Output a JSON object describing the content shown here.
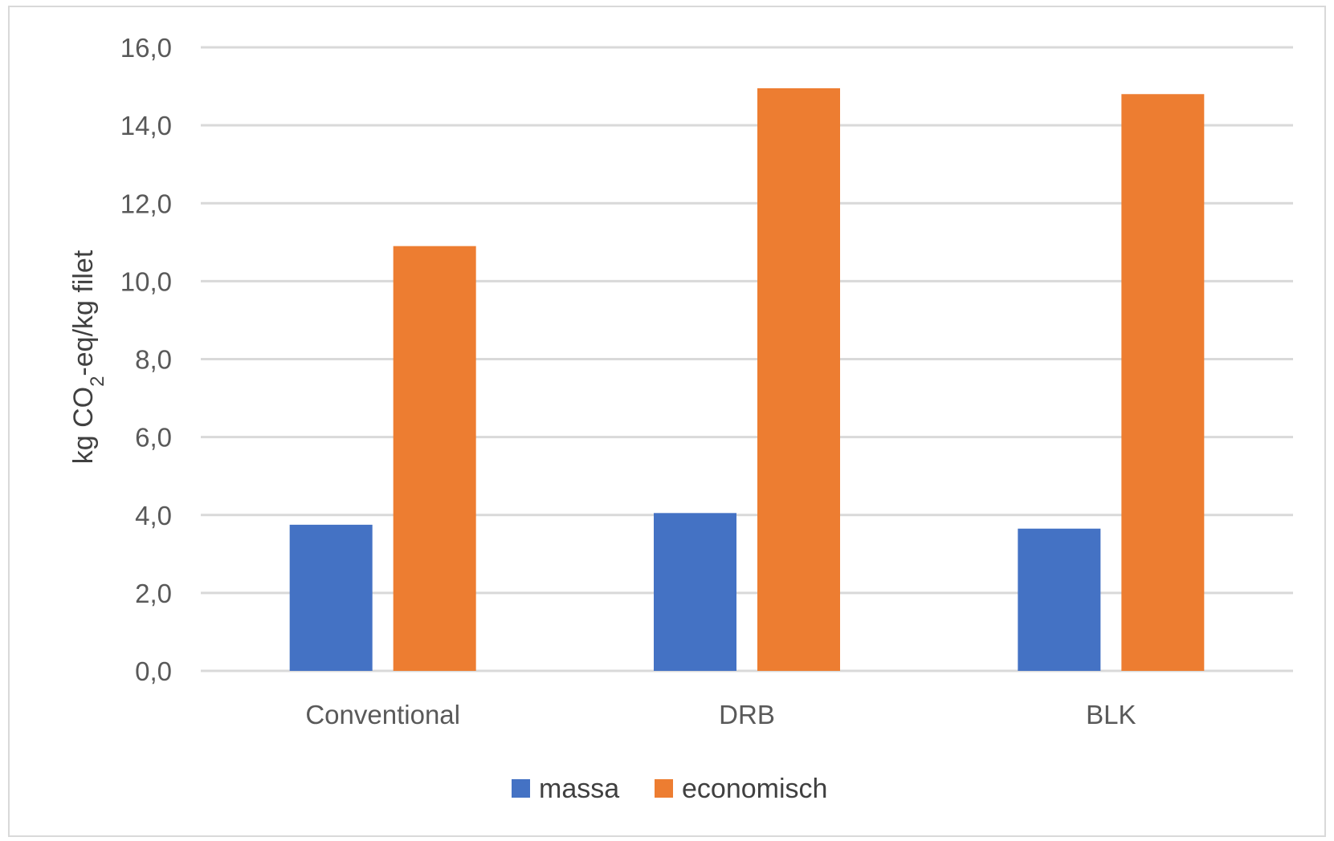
{
  "chart_data": {
    "type": "bar",
    "categories": [
      "Conventional",
      "DRB",
      "BLK"
    ],
    "series": [
      {
        "name": "massa",
        "values": [
          3.75,
          4.05,
          3.65
        ],
        "color": "#4472C4"
      },
      {
        "name": "economisch",
        "values": [
          10.9,
          14.95,
          14.8
        ],
        "color": "#ED7D31"
      }
    ],
    "title": "",
    "xlabel": "",
    "ylabel": {
      "prefix": "kg CO",
      "subscript": "2",
      "suffix": "-eq/kg filet"
    },
    "ylim": [
      0,
      16
    ],
    "yticks": [
      "0,0",
      "2,0",
      "4,0",
      "6,0",
      "8,0",
      "10,0",
      "12,0",
      "14,0",
      "16,0"
    ],
    "grid": true,
    "legend_position": "bottom"
  }
}
